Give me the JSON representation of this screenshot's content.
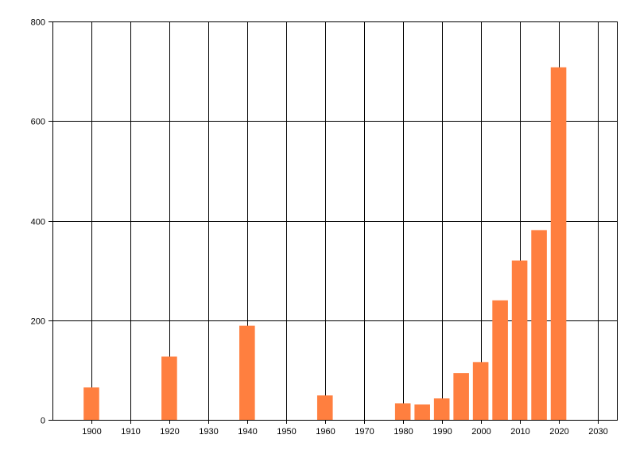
{
  "chart_data": {
    "type": "bar",
    "title": "",
    "xlabel": "",
    "ylabel": "",
    "x": [
      1900,
      1920,
      1940,
      1960,
      1980,
      1985,
      1990,
      1995,
      2000,
      2005,
      2010,
      2015,
      2020
    ],
    "values": [
      65,
      127,
      189,
      49,
      33,
      31,
      43,
      94,
      116,
      240,
      320,
      381,
      708
    ],
    "xlim": [
      1890,
      2035
    ],
    "ylim": [
      0,
      800
    ],
    "xticks": [
      1900,
      1910,
      1920,
      1930,
      1940,
      1950,
      1960,
      1970,
      1980,
      1990,
      2000,
      2010,
      2020,
      2030
    ],
    "yticks": [
      0,
      200,
      400,
      600,
      800
    ],
    "bar_width_years": 4,
    "grid": true,
    "legend": "none",
    "colors": {
      "bar": "#ff7f3f",
      "grid": "#000000",
      "axis": "#000000",
      "text": "#000000"
    }
  }
}
